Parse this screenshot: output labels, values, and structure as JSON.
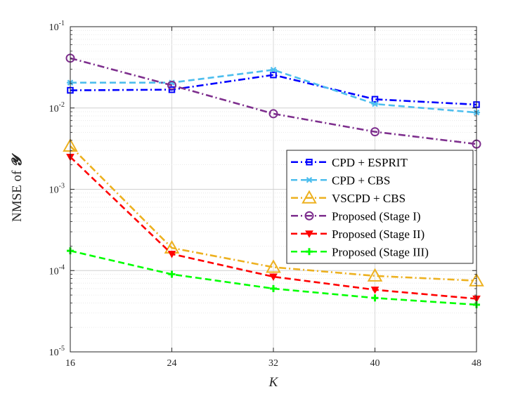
{
  "chart_data": {
    "type": "line",
    "title": "",
    "xlabel": "K",
    "ylabel_prefix": "NMSE of ",
    "ylabel_symbol": "𝓨",
    "x": [
      16,
      24,
      32,
      40,
      48
    ],
    "xlim": [
      16,
      48
    ],
    "ylim": [
      1e-05,
      0.1
    ],
    "yscale": "log",
    "grid": true,
    "legend_position": "right",
    "xtick_labels": [
      "16",
      "24",
      "32",
      "40",
      "48"
    ],
    "ytick_labels": [
      {
        "base": "10",
        "exp": "-5"
      },
      {
        "base": "10",
        "exp": "-4"
      },
      {
        "base": "10",
        "exp": "-3"
      },
      {
        "base": "10",
        "exp": "-2"
      },
      {
        "base": "10",
        "exp": "-1"
      }
    ],
    "series": [
      {
        "name": "CPD + ESPRIT",
        "values": [
          0.0165,
          0.0168,
          0.0255,
          0.0128,
          0.011
        ],
        "color": "#0000ff",
        "dash": "dashdot",
        "marker": "square"
      },
      {
        "name": "CPD + CBS",
        "values": [
          0.0205,
          0.0205,
          0.0295,
          0.0112,
          0.0088
        ],
        "color": "#4dbeee",
        "dash": "dash",
        "marker": "asterisk"
      },
      {
        "name": "VSCPD + CBS",
        "values": [
          0.0034,
          0.00019,
          0.00011,
          8.6e-05,
          7.5e-05
        ],
        "color": "#edb120",
        "dash": "dashdot",
        "marker": "triangle-up"
      },
      {
        "name": "Proposed (Stage I)",
        "values": [
          0.041,
          0.019,
          0.0085,
          0.0051,
          0.0036
        ],
        "color": "#7e2f8e",
        "dash": "dashdot",
        "marker": "circle"
      },
      {
        "name": "Proposed (Stage II)",
        "values": [
          0.0025,
          0.00016,
          8.4e-05,
          5.8e-05,
          4.5e-05
        ],
        "color": "#ff0000",
        "dash": "dash",
        "marker": "triangle-down"
      },
      {
        "name": "Proposed (Stage III)",
        "values": [
          0.000175,
          9e-05,
          6e-05,
          4.6e-05,
          3.8e-05
        ],
        "color": "#00ff00",
        "dash": "dash",
        "marker": "plus"
      }
    ]
  }
}
